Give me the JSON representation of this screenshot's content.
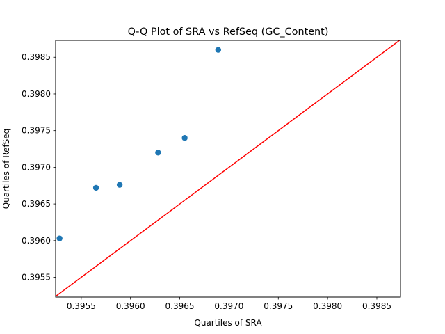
{
  "chart_data": {
    "type": "scatter",
    "title": "Q-Q Plot of SRA vs RefSeq (GC_Content)",
    "xlabel": "Quartiles of SRA",
    "ylabel": "Quartiles of RefSeq",
    "xlim": [
      0.39524,
      0.39874
    ],
    "ylim": [
      0.39523,
      0.39873
    ],
    "x_ticks": [
      "0.3955",
      "0.3960",
      "0.3965",
      "0.3970",
      "0.3975",
      "0.3980",
      "0.3985"
    ],
    "x_tick_values": [
      0.3955,
      0.396,
      0.3965,
      0.397,
      0.3975,
      0.398,
      0.3985
    ],
    "y_ticks": [
      "0.3955",
      "0.3960",
      "0.3965",
      "0.3970",
      "0.3975",
      "0.3980",
      "0.3985"
    ],
    "y_tick_values": [
      0.3955,
      0.396,
      0.3965,
      0.397,
      0.3975,
      0.398,
      0.3985
    ],
    "points": [
      {
        "x": 0.39528,
        "y": 0.39603
      },
      {
        "x": 0.39565,
        "y": 0.39672
      },
      {
        "x": 0.39589,
        "y": 0.39676
      },
      {
        "x": 0.39628,
        "y": 0.3972
      },
      {
        "x": 0.39655,
        "y": 0.3974
      },
      {
        "x": 0.39689,
        "y": 0.3986
      }
    ],
    "reference_line": "y = x",
    "grid": false,
    "colors": {
      "points": "#1f77b4",
      "reference_line": "#ff0000"
    }
  }
}
